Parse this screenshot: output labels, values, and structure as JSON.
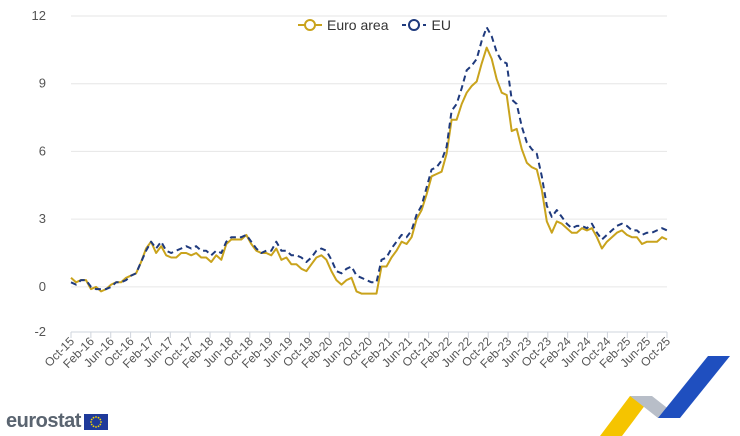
{
  "chart_data": {
    "type": "line",
    "title": "",
    "xlabel": "",
    "ylabel": "",
    "ylim": [
      -2,
      12
    ],
    "y_ticks": [
      "12",
      "9",
      "6",
      "3",
      "0",
      "-2"
    ],
    "grid": true,
    "legend_position": "top-center",
    "x_tick_labels": [
      "Oct-15",
      "Feb-16",
      "Jun-16",
      "Oct-16",
      "Feb-17",
      "Jun-17",
      "Oct-17",
      "Feb-18",
      "Jun-18",
      "Oct-18",
      "Feb-19",
      "Jun-19",
      "Oct-19",
      "Feb-20",
      "Jun-20",
      "Oct-20",
      "Feb-21",
      "Jun-21",
      "Oct-21",
      "Feb-22",
      "Jun-22",
      "Oct-22",
      "Feb-23",
      "Jun-23",
      "Oct-23",
      "Feb-24",
      "Jun-24",
      "Oct-24",
      "Feb-25",
      "Jun-25",
      "Oct-25"
    ],
    "series": [
      {
        "name": "Euro area",
        "color": "#c9a31c",
        "style": "solid",
        "values": [
          0.4,
          0.2,
          0.3,
          0.3,
          -0.1,
          0.0,
          -0.2,
          -0.1,
          0.1,
          0.2,
          0.2,
          0.4,
          0.5,
          0.6,
          1.1,
          1.7,
          2.0,
          1.5,
          1.8,
          1.4,
          1.3,
          1.3,
          1.5,
          1.5,
          1.4,
          1.5,
          1.3,
          1.3,
          1.1,
          1.4,
          1.2,
          1.9,
          2.1,
          2.1,
          2.1,
          2.3,
          1.9,
          1.6,
          1.5,
          1.5,
          1.4,
          1.7,
          1.2,
          1.3,
          1.0,
          1.0,
          0.8,
          0.7,
          1.0,
          1.3,
          1.4,
          1.2,
          0.7,
          0.3,
          0.1,
          0.3,
          0.4,
          -0.2,
          -0.3,
          -0.3,
          -0.3,
          -0.3,
          0.9,
          0.9,
          1.3,
          1.6,
          2.0,
          1.9,
          2.2,
          3.0,
          3.4,
          4.1,
          4.9,
          5.0,
          5.1,
          5.9,
          7.4,
          7.4,
          8.1,
          8.6,
          8.9,
          9.1,
          9.9,
          10.6,
          10.1,
          9.2,
          8.6,
          8.5,
          6.9,
          7.0,
          6.1,
          5.5,
          5.3,
          5.2,
          4.3,
          2.9,
          2.4,
          2.9,
          2.8,
          2.6,
          2.4,
          2.4,
          2.6,
          2.5,
          2.6,
          2.2,
          1.7,
          2.0,
          2.2,
          2.4,
          2.5,
          2.3,
          2.2,
          2.2,
          1.9,
          2.0,
          2.0,
          2.0,
          2.2,
          2.1
        ]
      },
      {
        "name": "EU",
        "color": "#1f3a7d",
        "style": "dashed",
        "values": [
          0.2,
          0.1,
          0.3,
          0.3,
          0.0,
          -0.1,
          -0.1,
          -0.1,
          0.0,
          0.2,
          0.2,
          0.3,
          0.5,
          0.6,
          1.1,
          1.6,
          2.0,
          1.7,
          2.0,
          1.6,
          1.5,
          1.6,
          1.7,
          1.8,
          1.7,
          1.8,
          1.6,
          1.6,
          1.4,
          1.6,
          1.5,
          2.0,
          2.2,
          2.2,
          2.2,
          2.3,
          2.0,
          1.7,
          1.5,
          1.6,
          1.6,
          2.0,
          1.6,
          1.6,
          1.4,
          1.4,
          1.3,
          1.1,
          1.3,
          1.6,
          1.7,
          1.6,
          1.2,
          0.7,
          0.6,
          0.8,
          0.9,
          0.5,
          0.4,
          0.3,
          0.2,
          0.2,
          1.2,
          1.3,
          1.7,
          2.0,
          2.3,
          2.2,
          2.5,
          3.2,
          3.6,
          4.4,
          5.2,
          5.3,
          5.6,
          6.2,
          7.8,
          8.1,
          8.8,
          9.6,
          9.8,
          10.1,
          10.9,
          11.5,
          11.1,
          10.4,
          10.0,
          9.9,
          8.3,
          8.1,
          7.1,
          6.4,
          6.1,
          5.9,
          4.9,
          3.6,
          3.1,
          3.4,
          3.1,
          2.8,
          2.6,
          2.7,
          2.7,
          2.6,
          2.8,
          2.4,
          2.1,
          2.3,
          2.5,
          2.7,
          2.8,
          2.7,
          2.5,
          2.5,
          2.3,
          2.4,
          2.4,
          2.5,
          2.6,
          2.5
        ]
      }
    ]
  },
  "brand": {
    "name": "eurostat"
  }
}
